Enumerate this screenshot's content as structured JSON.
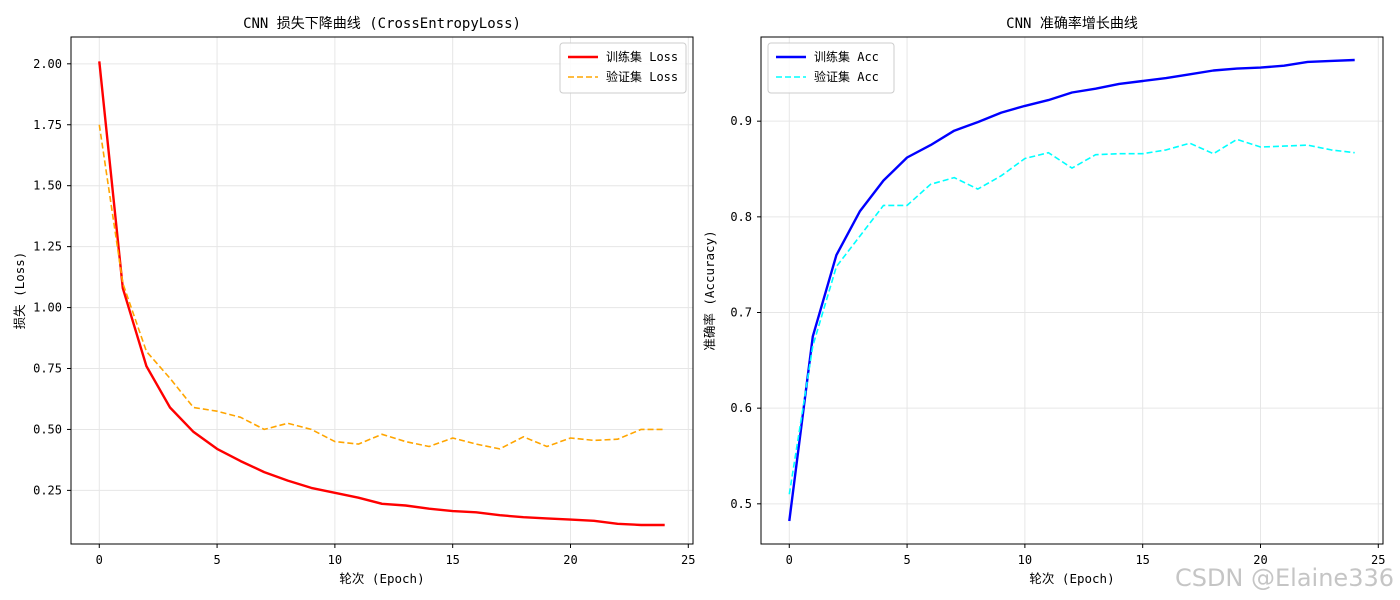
{
  "chart_data": [
    {
      "type": "line",
      "title": "CNN 损失下降曲线 (CrossEntropyLoss)",
      "xlabel": "轮次 (Epoch)",
      "ylabel": "损失 (Loss)",
      "xlim": [
        -1.2,
        25.2
      ],
      "ylim": [
        0.03,
        2.11
      ],
      "xticks": [
        0,
        5,
        10,
        15,
        20,
        25
      ],
      "yticks": [
        0.25,
        0.5,
        0.75,
        1.0,
        1.25,
        1.5,
        1.75,
        2.0
      ],
      "ytick_labels": [
        "0.25",
        "0.50",
        "0.75",
        "1.00",
        "1.25",
        "1.50",
        "1.75",
        "2.00"
      ],
      "grid": true,
      "legend_position": "top-right",
      "x": [
        0,
        1,
        2,
        3,
        4,
        5,
        6,
        7,
        8,
        9,
        10,
        11,
        12,
        13,
        14,
        15,
        16,
        17,
        18,
        19,
        20,
        21,
        22,
        23,
        24
      ],
      "series": [
        {
          "name": "训练集 Loss",
          "color": "#ff0000",
          "style": "solid",
          "values": [
            2.01,
            1.08,
            0.76,
            0.59,
            0.49,
            0.42,
            0.37,
            0.325,
            0.29,
            0.26,
            0.24,
            0.22,
            0.195,
            0.188,
            0.175,
            0.165,
            0.16,
            0.148,
            0.14,
            0.135,
            0.13,
            0.125,
            0.113,
            0.108,
            0.108
          ]
        },
        {
          "name": "验证集 Loss",
          "color": "#ffa500",
          "style": "dashed",
          "values": [
            1.75,
            1.1,
            0.82,
            0.71,
            0.59,
            0.575,
            0.55,
            0.5,
            0.525,
            0.5,
            0.45,
            0.44,
            0.48,
            0.45,
            0.43,
            0.465,
            0.44,
            0.42,
            0.47,
            0.43,
            0.465,
            0.455,
            0.46,
            0.5,
            0.5
          ]
        }
      ]
    },
    {
      "type": "line",
      "title": "CNN 准确率增长曲线",
      "xlabel": "轮次 (Epoch)",
      "ylabel": "准确率 (Accuracy)",
      "xlim": [
        -1.2,
        25.2
      ],
      "ylim": [
        0.458,
        0.988
      ],
      "xticks": [
        0,
        5,
        10,
        15,
        20,
        25
      ],
      "yticks": [
        0.5,
        0.6,
        0.7,
        0.8,
        0.9
      ],
      "ytick_labels": [
        "0.5",
        "0.6",
        "0.7",
        "0.8",
        "0.9"
      ],
      "grid": true,
      "legend_position": "top-left",
      "x": [
        0,
        1,
        2,
        3,
        4,
        5,
        6,
        7,
        8,
        9,
        10,
        11,
        12,
        13,
        14,
        15,
        16,
        17,
        18,
        19,
        20,
        21,
        22,
        23,
        24
      ],
      "series": [
        {
          "name": "训练集 Acc",
          "color": "#0000ff",
          "style": "solid",
          "values": [
            0.482,
            0.675,
            0.76,
            0.806,
            0.838,
            0.862,
            0.875,
            0.89,
            0.899,
            0.909,
            0.916,
            0.922,
            0.93,
            0.934,
            0.939,
            0.942,
            0.945,
            0.949,
            0.953,
            0.955,
            0.956,
            0.958,
            0.962,
            0.963,
            0.964
          ]
        },
        {
          "name": "验证集 Acc",
          "color": "#00ffff",
          "style": "dashed",
          "values": [
            0.51,
            0.665,
            0.748,
            0.78,
            0.812,
            0.812,
            0.834,
            0.841,
            0.829,
            0.843,
            0.861,
            0.867,
            0.851,
            0.865,
            0.866,
            0.866,
            0.87,
            0.877,
            0.866,
            0.881,
            0.873,
            0.874,
            0.875,
            0.87,
            0.867
          ]
        }
      ]
    }
  ],
  "watermark": "CSDN @Elaine336"
}
